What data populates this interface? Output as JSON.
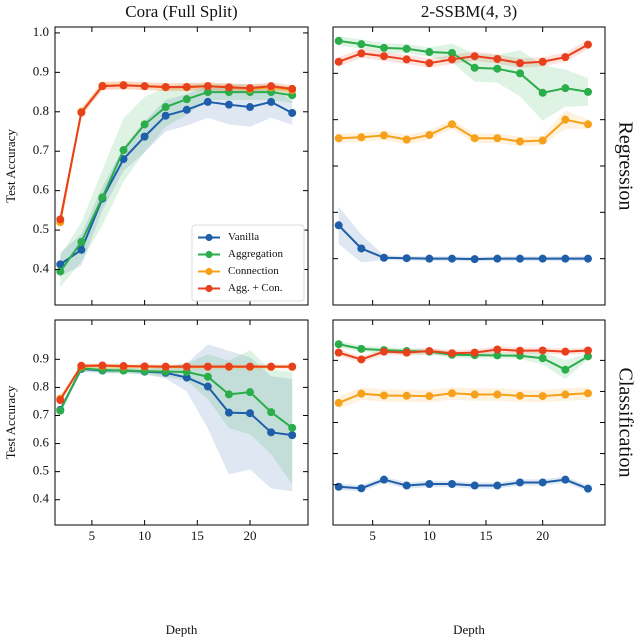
{
  "chart_data": [
    {
      "type": "line",
      "title": "Cora (Full Split)",
      "ylabel": "Test Accuracy",
      "legend": "lower right",
      "x": [
        2,
        4,
        6,
        8,
        10,
        12,
        14,
        16,
        18,
        20,
        22,
        24
      ],
      "xlim": [
        1.5,
        25.5
      ],
      "xticks": [
        5,
        10,
        15,
        20
      ],
      "ylim": [
        0.31,
        1.015
      ],
      "yticks": [
        0.4,
        0.5,
        0.6,
        0.7,
        0.8,
        0.9,
        {
          "value": 1,
          "label": "1.0"
        }
      ],
      "series": [
        {
          "name": "Vanilla",
          "color": "#1f5ea8",
          "values": [
            0.413,
            0.45,
            0.58,
            0.68,
            0.737,
            0.79,
            0.805,
            0.825,
            0.818,
            0.812,
            0.825,
            0.797
          ],
          "errors": [
            0.03,
            0.04,
            0.03,
            0.03,
            0.04,
            0.04,
            0.04,
            0.04,
            0.05,
            0.05,
            0.04,
            0.03
          ]
        },
        {
          "name": "Aggregation",
          "color": "#2aad4a",
          "values": [
            0.395,
            0.47,
            0.583,
            0.703,
            0.768,
            0.812,
            0.832,
            0.85,
            0.85,
            0.85,
            0.85,
            0.842
          ],
          "errors": [
            0.04,
            0.05,
            0.07,
            0.08,
            0.07,
            0.05,
            0.04,
            0.02,
            0.02,
            0.02,
            0.02,
            0.02
          ]
        },
        {
          "name": "Connection",
          "color": "#f7a11a",
          "values": [
            0.52,
            0.8,
            0.866,
            0.868,
            0.865,
            0.862,
            0.862,
            0.865,
            0.862,
            0.858,
            0.862,
            0.855
          ],
          "errors": [
            0.01,
            0.01,
            0.01,
            0.01,
            0.01,
            0.01,
            0.01,
            0.01,
            0.01,
            0.01,
            0.01,
            0.01
          ]
        },
        {
          "name": "Agg. + Con.",
          "color": "#e8401c",
          "values": [
            0.527,
            0.798,
            0.865,
            0.867,
            0.865,
            0.863,
            0.863,
            0.865,
            0.862,
            0.86,
            0.865,
            0.858
          ],
          "errors": [
            0.01,
            0.01,
            0.01,
            0.01,
            0.01,
            0.01,
            0.01,
            0.01,
            0.01,
            0.01,
            0.01,
            0.01
          ]
        }
      ]
    },
    {
      "type": "line",
      "title": "2-SSBM(4, 3)",
      "row_label": "Regression",
      "x": [
        2,
        4,
        6,
        8,
        10,
        12,
        14,
        16,
        18,
        20,
        22,
        24
      ],
      "xlim": [
        1.5,
        25.5
      ],
      "xticks": [
        5,
        10,
        15,
        20
      ],
      "ylim": [
        0.4,
        1.0
      ],
      "yticks": [
        0.5,
        0.6,
        0.7,
        0.8,
        0.9
      ],
      "series": [
        {
          "color": "#1f5ea8",
          "values": [
            0.572,
            0.522,
            0.502,
            0.501,
            0.5,
            0.5,
            0.499,
            0.5,
            0.5,
            0.5,
            0.5,
            0.5
          ],
          "errors": [
            0.04,
            0.03,
            0.005,
            0.005,
            0.005,
            0.005,
            0.005,
            0.005,
            0.005,
            0.005,
            0.005,
            0.005
          ]
        },
        {
          "color": "#2aad4a",
          "values": [
            0.97,
            0.963,
            0.955,
            0.953,
            0.946,
            0.944,
            0.912,
            0.91,
            0.9,
            0.858,
            0.868,
            0.86
          ],
          "errors": [
            0.01,
            0.01,
            0.01,
            0.01,
            0.01,
            0.02,
            0.03,
            0.03,
            0.05,
            0.06,
            0.04,
            0.03
          ]
        },
        {
          "color": "#f7a11a",
          "values": [
            0.76,
            0.762,
            0.766,
            0.757,
            0.767,
            0.79,
            0.76,
            0.76,
            0.753,
            0.755,
            0.8,
            0.79
          ],
          "errors": [
            0.01,
            0.01,
            0.01,
            0.01,
            0.01,
            0.01,
            0.01,
            0.01,
            0.01,
            0.01,
            0.02,
            0.01
          ]
        },
        {
          "color": "#e8401c",
          "values": [
            0.925,
            0.943,
            0.937,
            0.93,
            0.922,
            0.93,
            0.937,
            0.931,
            0.922,
            0.925,
            0.935,
            0.962
          ],
          "errors": [
            0.01,
            0.01,
            0.01,
            0.01,
            0.01,
            0.01,
            0.01,
            0.01,
            0.01,
            0.01,
            0.01,
            0.01
          ]
        }
      ]
    },
    {
      "type": "line",
      "ylabel": "Test Accuracy",
      "xlabel": "Depth",
      "x": [
        2,
        4,
        6,
        8,
        10,
        12,
        14,
        16,
        18,
        20,
        22,
        24
      ],
      "xlim": [
        1.5,
        25.5
      ],
      "xticks": [
        5,
        10,
        15,
        20
      ],
      "ylim": [
        0.31,
        1.04
      ],
      "yticks": [
        0.4,
        0.5,
        0.6,
        0.7,
        0.8,
        0.9
      ],
      "series": [
        {
          "color": "#1f5ea8",
          "values": [
            0.72,
            0.866,
            0.86,
            0.86,
            0.856,
            0.852,
            0.835,
            0.803,
            0.71,
            0.708,
            0.64,
            0.63
          ],
          "errors": [
            0.01,
            0.01,
            0.01,
            0.01,
            0.01,
            0.02,
            0.05,
            0.15,
            0.22,
            0.2,
            0.2,
            0.2
          ]
        },
        {
          "color": "#2aad4a",
          "values": [
            0.717,
            0.868,
            0.862,
            0.86,
            0.858,
            0.856,
            0.855,
            0.838,
            0.775,
            0.783,
            0.712,
            0.656
          ],
          "errors": [
            0.01,
            0.01,
            0.01,
            0.01,
            0.01,
            0.02,
            0.03,
            0.08,
            0.12,
            0.15,
            0.15,
            0.2
          ]
        },
        {
          "color": "#f7a11a",
          "values": [
            0.76,
            0.875,
            0.876,
            0.874,
            0.874,
            0.873,
            0.873,
            0.873,
            0.873,
            0.873,
            0.873,
            0.873
          ],
          "errors": [
            0.01,
            0.01,
            0.01,
            0.01,
            0.01,
            0.01,
            0.01,
            0.01,
            0.01,
            0.01,
            0.01,
            0.01
          ]
        },
        {
          "color": "#e8401c",
          "values": [
            0.755,
            0.877,
            0.878,
            0.876,
            0.875,
            0.874,
            0.874,
            0.874,
            0.874,
            0.874,
            0.874,
            0.874
          ],
          "errors": [
            0.005,
            0.005,
            0.005,
            0.005,
            0.005,
            0.005,
            0.005,
            0.005,
            0.005,
            0.005,
            0.005,
            0.005
          ]
        }
      ]
    },
    {
      "type": "line",
      "xlabel": "Depth",
      "row_label": "Classification",
      "x": [
        2,
        4,
        6,
        8,
        10,
        12,
        14,
        16,
        18,
        20,
        22,
        24
      ],
      "xlim": [
        1.5,
        25.5
      ],
      "xticks": [
        5,
        10,
        15,
        20
      ],
      "ylim": [
        0.37,
        1.03
      ],
      "yticks": [
        0.5,
        0.6,
        0.7,
        0.8,
        0.9
      ],
      "series": [
        {
          "color": "#1f5ea8",
          "values": [
            0.493,
            0.488,
            0.516,
            0.497,
            0.502,
            0.502,
            0.497,
            0.497,
            0.507,
            0.507,
            0.516,
            0.487
          ],
          "errors": [
            0.01,
            0.01,
            0.01,
            0.01,
            0.01,
            0.01,
            0.01,
            0.01,
            0.01,
            0.01,
            0.01,
            0.01
          ]
        },
        {
          "color": "#2aad4a",
          "values": [
            0.952,
            0.937,
            0.933,
            0.93,
            0.928,
            0.918,
            0.917,
            0.916,
            0.915,
            0.907,
            0.87,
            0.913
          ],
          "errors": [
            0.01,
            0.01,
            0.01,
            0.01,
            0.01,
            0.01,
            0.01,
            0.01,
            0.01,
            0.02,
            0.03,
            0.01
          ]
        },
        {
          "color": "#f7a11a",
          "values": [
            0.763,
            0.793,
            0.787,
            0.786,
            0.785,
            0.794,
            0.79,
            0.79,
            0.786,
            0.785,
            0.79,
            0.794
          ],
          "errors": [
            0.02,
            0.02,
            0.02,
            0.02,
            0.02,
            0.02,
            0.02,
            0.02,
            0.02,
            0.02,
            0.02,
            0.02
          ]
        },
        {
          "color": "#e8401c",
          "values": [
            0.925,
            0.903,
            0.928,
            0.925,
            0.93,
            0.923,
            0.925,
            0.935,
            0.931,
            0.932,
            0.928,
            0.932
          ],
          "errors": [
            0.01,
            0.01,
            0.01,
            0.01,
            0.01,
            0.01,
            0.01,
            0.01,
            0.01,
            0.01,
            0.01,
            0.01
          ]
        }
      ]
    }
  ]
}
